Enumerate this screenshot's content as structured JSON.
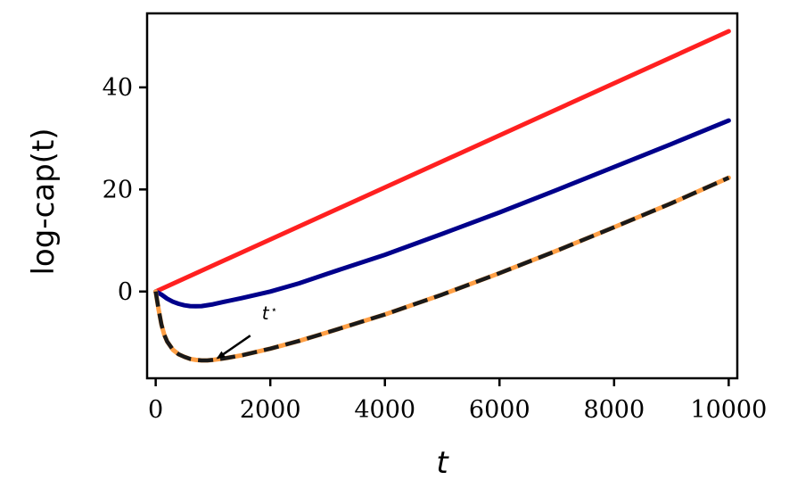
{
  "chart_data": {
    "type": "line",
    "xlabel": "t",
    "ylabel": "log-cap(t)",
    "xlim": [
      -150,
      10150
    ],
    "ylim": [
      -17,
      54.5
    ],
    "xticks": [
      0,
      2000,
      4000,
      6000,
      8000,
      10000
    ],
    "yticks": [
      0,
      20,
      40
    ],
    "xtick_labels": [
      "0",
      "2000",
      "4000",
      "6000",
      "8000",
      "10000"
    ],
    "ytick_labels": [
      "0",
      "20",
      "40"
    ],
    "grid": false,
    "legend": "none",
    "series": [
      {
        "color": "#ff2020",
        "style": "solid",
        "x": [
          0,
          10000
        ],
        "y": [
          0,
          51
        ]
      },
      {
        "color": "#00008b",
        "style": "solid",
        "x": [
          0,
          100,
          200,
          300,
          400,
          500,
          600,
          700,
          800,
          1000,
          1200,
          1500,
          2000,
          2500,
          3000,
          4000,
          5000,
          6000,
          7000,
          8000,
          9000,
          10000
        ],
        "y": [
          0,
          -0.6,
          -1.4,
          -2.0,
          -2.4,
          -2.7,
          -2.85,
          -2.9,
          -2.85,
          -2.5,
          -2.0,
          -1.3,
          0.0,
          1.6,
          3.5,
          7.2,
          11.3,
          15.5,
          19.9,
          24.4,
          28.9,
          33.5
        ]
      },
      {
        "color": "#ff9f45",
        "style": "solid",
        "x": [
          0,
          50,
          100,
          150,
          200,
          300,
          400,
          500,
          600,
          700,
          800,
          900,
          1000,
          1200,
          1500,
          2000,
          2500,
          3000,
          4000,
          5000,
          6000,
          7000,
          8000,
          9000,
          10000
        ],
        "y": [
          0,
          -3.5,
          -6.5,
          -8.5,
          -9.8,
          -11.4,
          -12.3,
          -12.8,
          -13.2,
          -13.4,
          -13.5,
          -13.5,
          -13.4,
          -13.1,
          -12.5,
          -11.2,
          -9.7,
          -8.0,
          -4.5,
          -0.6,
          3.6,
          8.0,
          12.6,
          17.3,
          22.3
        ]
      },
      {
        "color": "#1a1a1a",
        "style": "dashed",
        "x": [
          0,
          50,
          100,
          150,
          200,
          300,
          400,
          500,
          600,
          700,
          800,
          900,
          1000,
          1200,
          1500,
          2000,
          2500,
          3000,
          4000,
          5000,
          6000,
          7000,
          8000,
          9000,
          10000
        ],
        "y": [
          0,
          -3.5,
          -6.5,
          -8.5,
          -9.8,
          -11.4,
          -12.3,
          -12.8,
          -13.2,
          -13.4,
          -13.5,
          -13.5,
          -13.4,
          -13.1,
          -12.5,
          -11.2,
          -9.7,
          -8.0,
          -4.5,
          -0.6,
          3.6,
          8.0,
          12.6,
          17.3,
          22.3
        ]
      }
    ],
    "annotations": [
      {
        "text": "t*",
        "point": [
          1050,
          -13.4
        ],
        "text_at": [
          1900,
          -5.5
        ]
      }
    ]
  }
}
